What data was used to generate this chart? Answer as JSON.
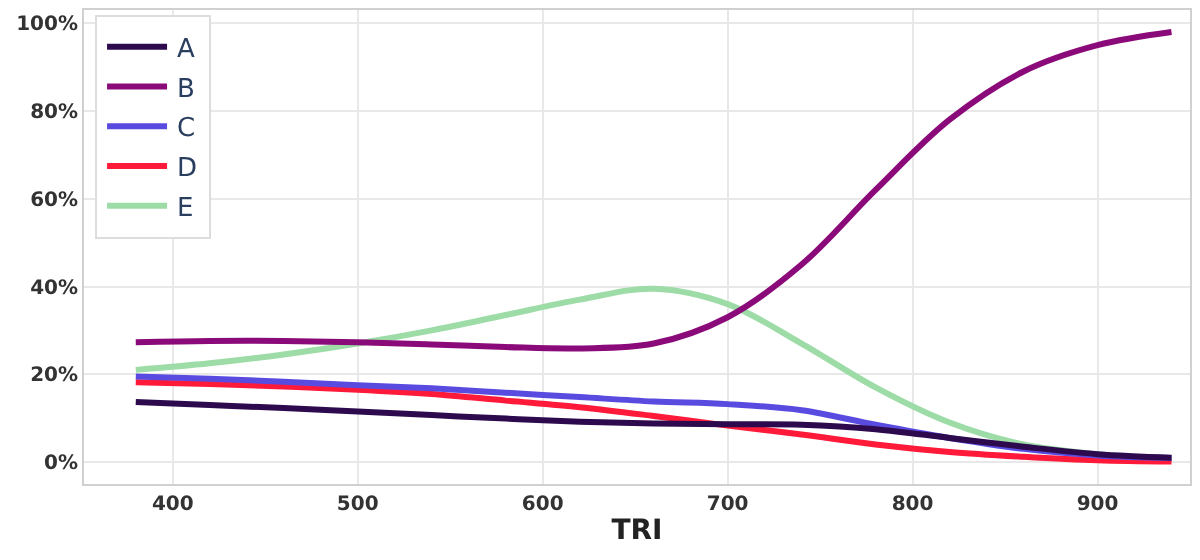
{
  "chart_data": {
    "type": "line",
    "xlabel": "TRI",
    "x": [
      380,
      420,
      460,
      500,
      540,
      580,
      620,
      660,
      700,
      740,
      780,
      820,
      860,
      900,
      940
    ],
    "series": [
      {
        "name": "A",
        "color": "#2d0a4e",
        "values": [
          13.7,
          13,
          12.3,
          11.5,
          10.7,
          9.9,
          9.2,
          8.8,
          8.6,
          8.5,
          7.5,
          5.5,
          3.5,
          1.8,
          1
        ]
      },
      {
        "name": "B",
        "color": "#8b0a7a",
        "values": [
          27.3,
          27.6,
          27.6,
          27.3,
          26.8,
          26.2,
          25.9,
          27,
          33,
          45,
          62,
          78,
          89,
          95,
          98
        ]
      },
      {
        "name": "C",
        "color": "#5a4be0",
        "values": [
          19.5,
          19,
          18.3,
          17.5,
          16.8,
          15.8,
          14.8,
          13.8,
          13.2,
          11.8,
          8.5,
          5.5,
          3,
          1.5,
          0.9
        ]
      },
      {
        "name": "D",
        "color": "#ff1a3a",
        "values": [
          18.2,
          17.8,
          17.2,
          16.5,
          15.5,
          14,
          12.5,
          10.5,
          8.3,
          6.3,
          4,
          2.3,
          1.2,
          0.4,
          0.1
        ]
      },
      {
        "name": "E",
        "color": "#9ddca6",
        "values": [
          21,
          22.5,
          24.5,
          27,
          30,
          33.5,
          37,
          39.5,
          36,
          27,
          17,
          9,
          4,
          1.8,
          0.7
        ]
      }
    ],
    "xlim": [
      352,
      950
    ],
    "xticks": [
      400,
      500,
      600,
      700,
      800,
      900
    ],
    "ylim": [
      -5,
      103
    ],
    "yticks": [
      {
        "value": 0,
        "label": "0%"
      },
      {
        "value": 20,
        "label": "20%"
      },
      {
        "value": 40,
        "label": "40%"
      },
      {
        "value": 60,
        "label": "60%"
      },
      {
        "value": 80,
        "label": "80%"
      },
      {
        "value": 100,
        "label": "100%"
      }
    ],
    "grid": true,
    "legend": "top left",
    "line_style": "solid",
    "marker": "none"
  }
}
